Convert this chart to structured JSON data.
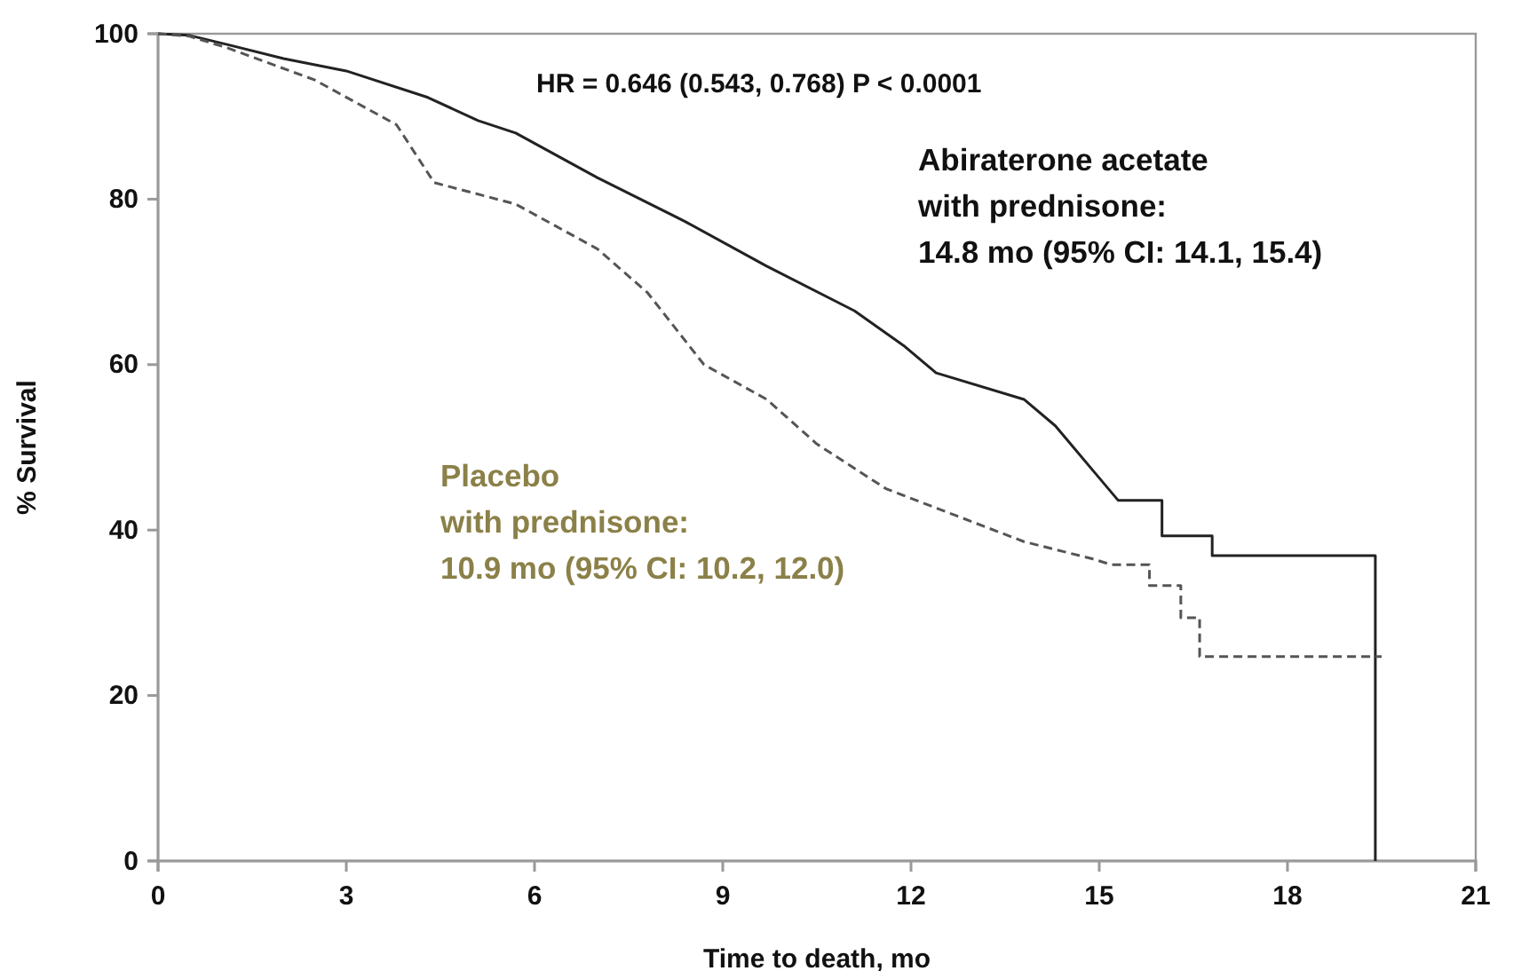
{
  "chart_data": {
    "type": "line",
    "xlabel": "Time to death, mo",
    "ylabel": "% Survival",
    "xlim": [
      0,
      21
    ],
    "xticks": [
      0,
      3,
      6,
      9,
      12,
      15,
      18,
      21
    ],
    "ylim": [
      0,
      100
    ],
    "yticks": [
      0,
      20,
      40,
      60,
      80,
      100
    ],
    "grid": false,
    "annotations": [
      "HR = 0.646 (0.543, 0.768) P < 0.0001"
    ],
    "series": [
      {
        "name": "Abiraterone acetate\nwith prednisone:\n14.8 mo (95% CI: 14.1, 15.4)",
        "color": "#222222",
        "line_style": "solid",
        "x": [
          0,
          0.5,
          1.1,
          2,
          3,
          4.3,
          5.1,
          5.7,
          7,
          8.4,
          9.7,
          11.1,
          11.9,
          12.4,
          13.8,
          14.3,
          14.9,
          15.3,
          16,
          16,
          16.8,
          16.8,
          19.4,
          19.4
        ],
        "values": [
          100,
          99.8,
          98.7,
          97,
          95.5,
          92.3,
          89.5,
          88,
          82.6,
          77.3,
          71.9,
          66.5,
          62.2,
          59,
          55.8,
          52.6,
          47.2,
          43.6,
          43.6,
          39.3,
          39.3,
          36.9,
          36.9,
          0
        ]
      },
      {
        "name": "Placebo\nwith prednisone:\n10.9 mo (95% CI: 10.2, 12.0)",
        "color": "#555555",
        "line_style": "dashed",
        "x": [
          0,
          0.5,
          1.1,
          2.5,
          3.8,
          4.4,
          5.7,
          7,
          7.8,
          8.7,
          9.7,
          10.5,
          11.6,
          12.7,
          13.8,
          14.9,
          15.2,
          15.8,
          15.8,
          16.3,
          16.3,
          16.6,
          16.6,
          19.5
        ],
        "values": [
          100,
          99.7,
          98.3,
          94.4,
          89,
          82,
          79.4,
          74,
          68.7,
          60,
          55.8,
          50.4,
          45,
          41.8,
          38.6,
          36.5,
          35.8,
          35.8,
          33.3,
          33.3,
          29.4,
          29.4,
          24.7,
          24.7
        ]
      }
    ]
  }
}
